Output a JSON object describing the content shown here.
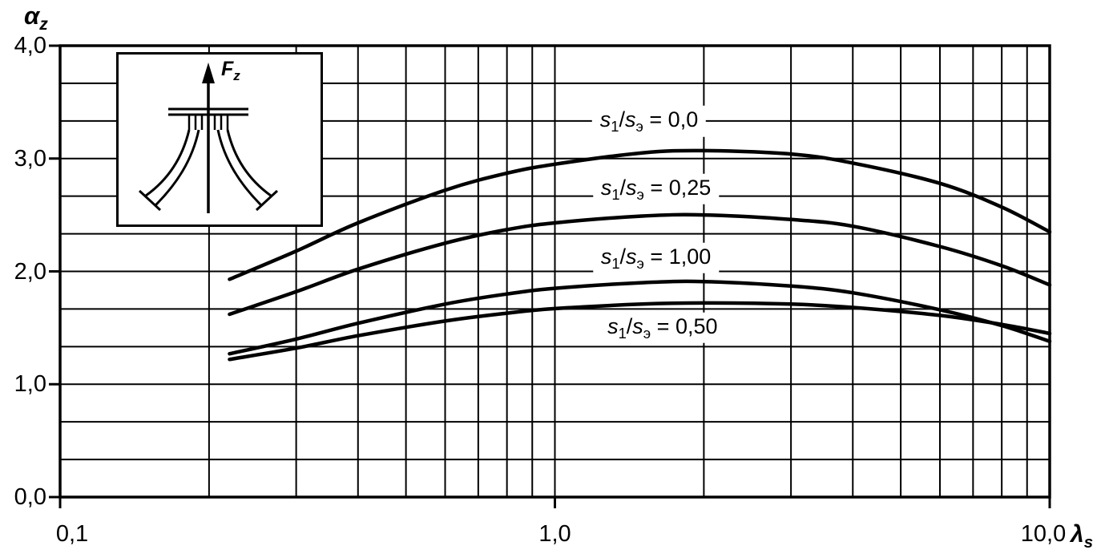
{
  "chart_data": {
    "type": "line",
    "title": "",
    "xlabel": {
      "base": "λ",
      "sub": "s"
    },
    "ylabel": {
      "base": "α",
      "sub": "z"
    },
    "x_scale": "log",
    "xlim": [
      0.1,
      10
    ],
    "ylim": [
      0,
      4
    ],
    "grid": {
      "visible": true,
      "horizontal_step": 0.3333,
      "vertical": "log minor lines at 1-9 per decade"
    },
    "line_color": "#000000",
    "x_ticks": [
      {
        "v": 0.1,
        "label": "0,1"
      },
      {
        "v": 1,
        "label": "1,0"
      },
      {
        "v": 10,
        "label": "10,0"
      }
    ],
    "y_ticks": [
      {
        "v": 0,
        "label": "0,0"
      },
      {
        "v": 1,
        "label": "1,0"
      },
      {
        "v": 2,
        "label": "2,0"
      },
      {
        "v": 3,
        "label": "3,0"
      },
      {
        "v": 4,
        "label": "4,0"
      }
    ],
    "series_label_template": {
      "num_base": "s",
      "num_sub": "1",
      "den_base": "s",
      "den_sub": "э"
    },
    "series": [
      {
        "name": "s1/sэ = 0,0",
        "ratio": "0,0",
        "label_pos": {
          "x": 1.55,
          "y": 3.33
        },
        "x": [
          0.22,
          0.3,
          0.4,
          0.6,
          0.8,
          1.0,
          1.5,
          2.0,
          3.0,
          4.0,
          6.0,
          8.0,
          10.0
        ],
        "y": [
          1.93,
          2.18,
          2.43,
          2.72,
          2.87,
          2.95,
          3.05,
          3.07,
          3.04,
          2.96,
          2.78,
          2.57,
          2.35
        ]
      },
      {
        "name": "s1/sэ = 0,25",
        "ratio": "0,25",
        "label_pos": {
          "x": 1.6,
          "y": 2.73
        },
        "x": [
          0.22,
          0.3,
          0.4,
          0.6,
          0.8,
          1.0,
          1.5,
          2.0,
          3.0,
          4.0,
          6.0,
          8.0,
          10.0
        ],
        "y": [
          1.62,
          1.82,
          2.02,
          2.25,
          2.37,
          2.43,
          2.49,
          2.5,
          2.46,
          2.4,
          2.22,
          2.05,
          1.88
        ]
      },
      {
        "name": "s1/sэ = 1,00",
        "ratio": "1,00",
        "label_pos": {
          "x": 1.6,
          "y": 2.12
        },
        "x": [
          0.22,
          0.3,
          0.4,
          0.6,
          0.8,
          1.0,
          1.5,
          2.0,
          3.0,
          4.0,
          6.0,
          8.0,
          10.0
        ],
        "y": [
          1.27,
          1.4,
          1.54,
          1.71,
          1.8,
          1.85,
          1.9,
          1.91,
          1.87,
          1.81,
          1.66,
          1.52,
          1.38
        ]
      },
      {
        "name": "s1/sэ = 0,50",
        "ratio": "0,50",
        "label_pos": {
          "x": 1.65,
          "y": 1.5
        },
        "x": [
          0.22,
          0.3,
          0.4,
          0.6,
          0.8,
          1.0,
          1.5,
          2.0,
          3.0,
          4.0,
          6.0,
          8.0,
          10.0
        ],
        "y": [
          1.22,
          1.32,
          1.43,
          1.56,
          1.63,
          1.67,
          1.71,
          1.72,
          1.71,
          1.68,
          1.61,
          1.53,
          1.45
        ]
      }
    ],
    "inset": {
      "force_label": {
        "base": "F",
        "sub": "z"
      },
      "icon": "flanged-joint-cross-section"
    }
  }
}
